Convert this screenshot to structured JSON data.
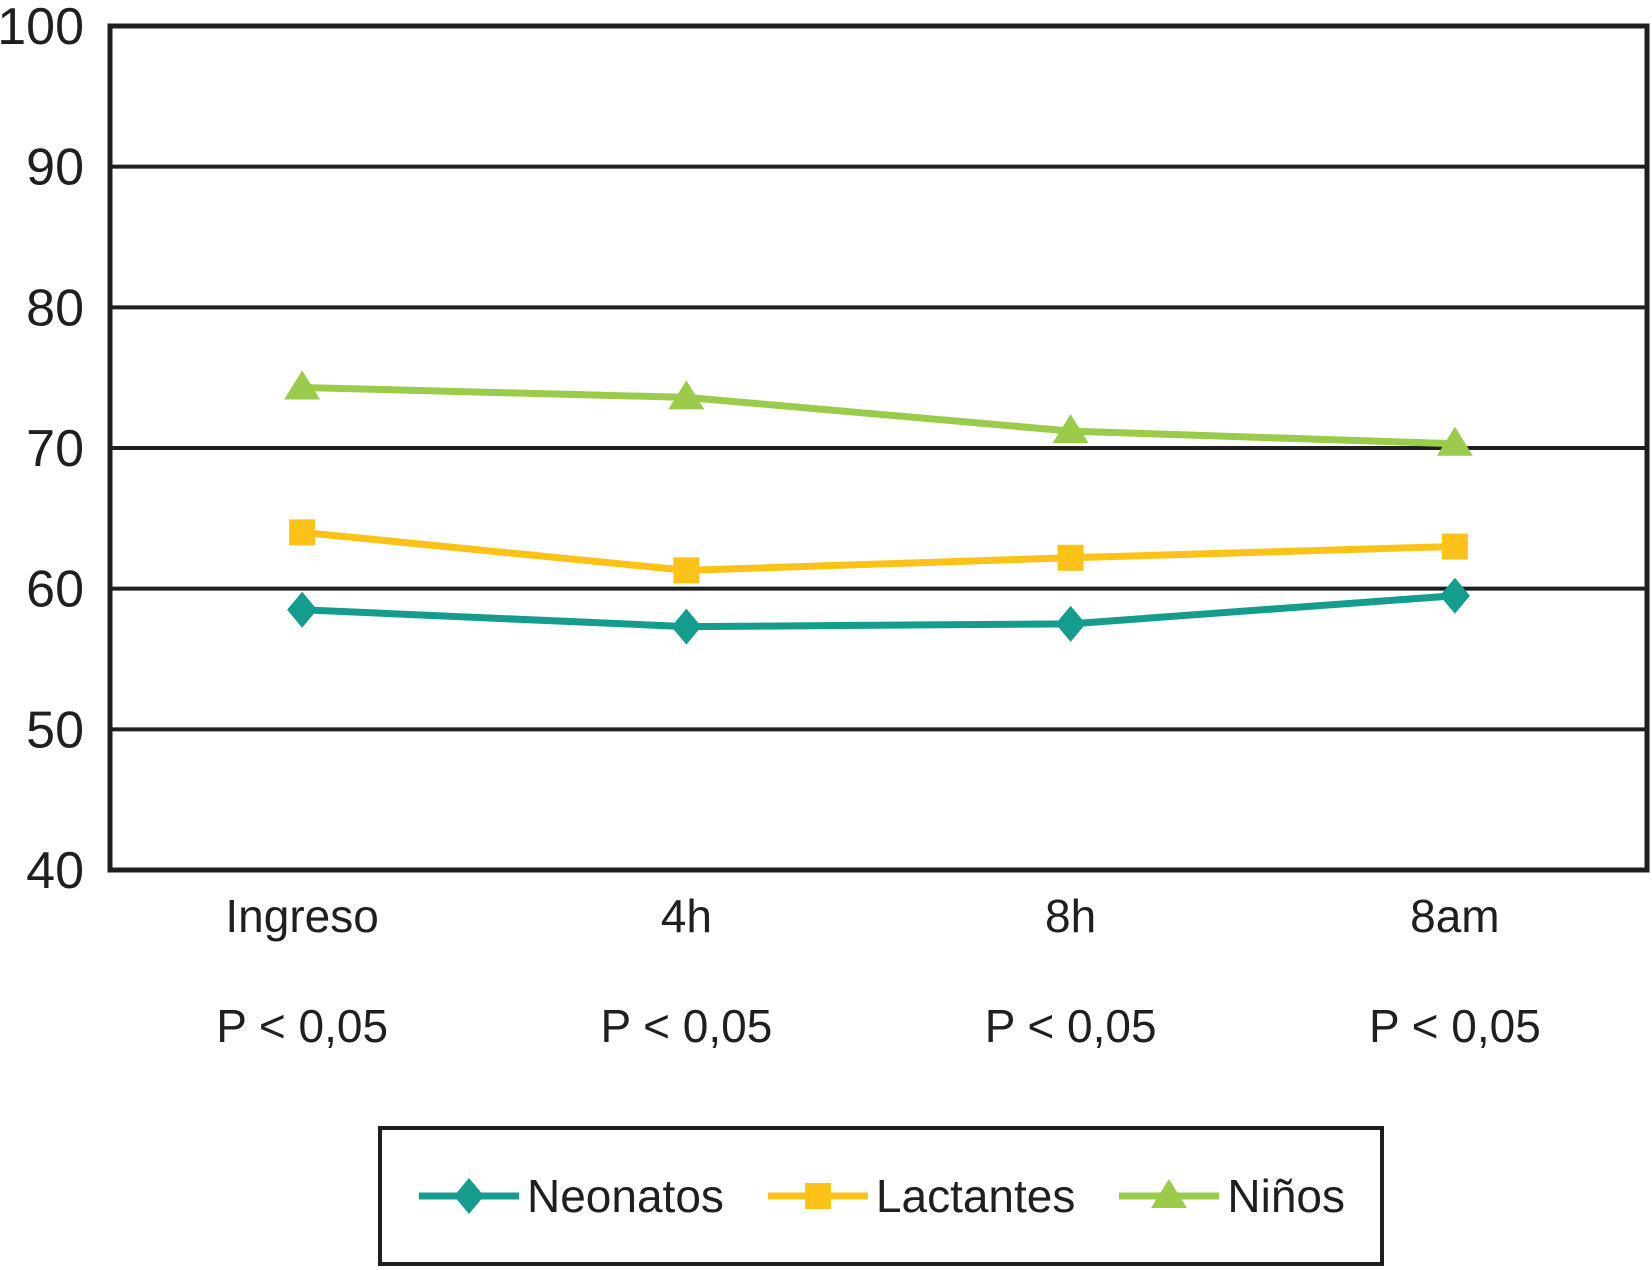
{
  "figure": {
    "background": "#FFFFFF"
  },
  "chart_data": {
    "type": "line",
    "title": "",
    "xlabel": "",
    "ylabel": "",
    "categories": [
      "Ingreso",
      "4h",
      "8h",
      "8am"
    ],
    "x_sub_labels": [
      "P < 0,05",
      "P < 0,05",
      "P < 0,05",
      "P < 0,05"
    ],
    "series": [
      {
        "name": "Neonatos",
        "marker": "diamond",
        "color": "#149C8C",
        "values": [
          58.5,
          57.3,
          57.5,
          59.5
        ]
      },
      {
        "name": "Lactantes",
        "marker": "square",
        "color": "#FCC217",
        "values": [
          64.0,
          61.3,
          62.2,
          63.0
        ]
      },
      {
        "name": "Niños",
        "marker": "triangle",
        "color": "#9ACB4B",
        "values": [
          74.3,
          73.6,
          71.2,
          70.3
        ]
      }
    ],
    "ylim": [
      40,
      100
    ],
    "yticks": [
      40,
      50,
      60,
      70,
      80,
      90,
      100
    ],
    "grid": true,
    "gridline_color": "#1f1f1f",
    "axis_color": "#1f1f1f",
    "text_color": "#1f1f1f",
    "legend_position": "bottom"
  }
}
